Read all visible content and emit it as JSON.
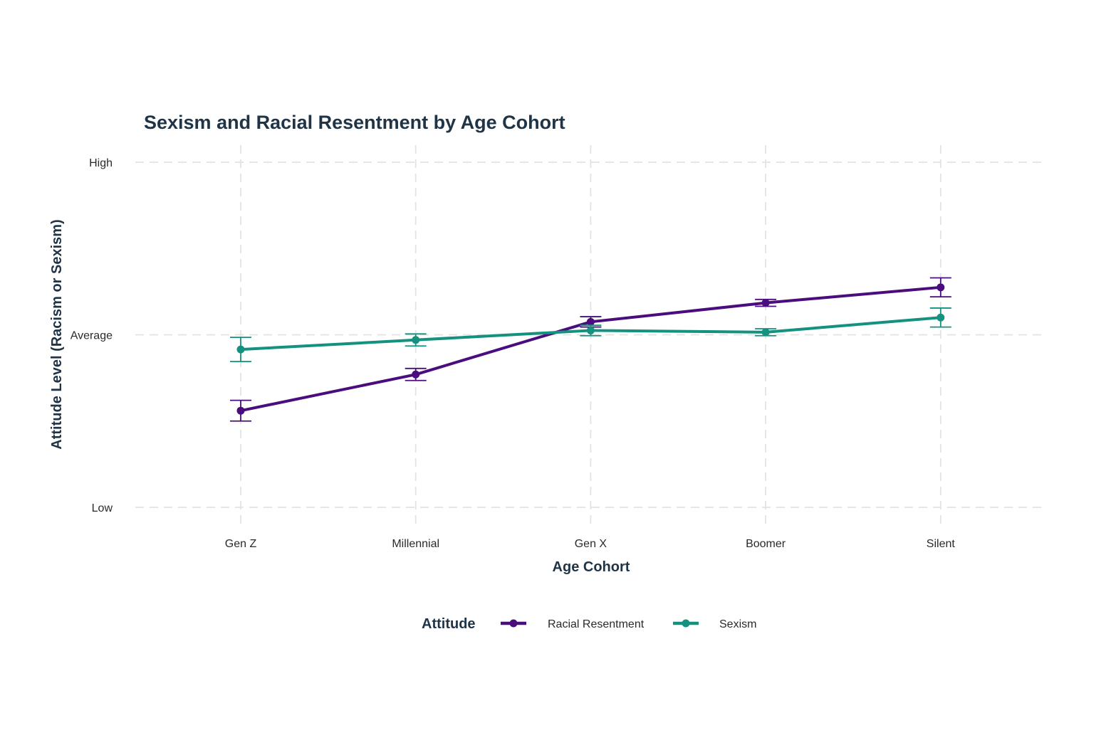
{
  "chart_data": {
    "type": "line",
    "title": "Sexism and Racial Resentment by Age Cohort",
    "xlabel": "Age Cohort",
    "ylabel": "Attitude Level (Racism or Sexism)",
    "categories": [
      "Gen Z",
      "Millennial",
      "Gen X",
      "Boomer",
      "Silent"
    ],
    "y_tick_labels": [
      "Low",
      "Average",
      "High"
    ],
    "y_tick_values": [
      -1,
      0,
      1
    ],
    "ylim": [
      -1,
      1
    ],
    "grid": true,
    "legend": {
      "title": "Attitude",
      "placement": "bottom"
    },
    "series": [
      {
        "name": "Racial Resentment",
        "color": "#4b0d7e",
        "values": [
          -0.44,
          -0.23,
          0.075,
          0.185,
          0.275
        ],
        "error": [
          0.06,
          0.035,
          0.03,
          0.02,
          0.055
        ]
      },
      {
        "name": "Sexism",
        "color": "#14917f",
        "values": [
          -0.085,
          -0.03,
          0.025,
          0.015,
          0.1
        ],
        "error": [
          0.07,
          0.035,
          0.03,
          0.02,
          0.055
        ]
      }
    ]
  }
}
